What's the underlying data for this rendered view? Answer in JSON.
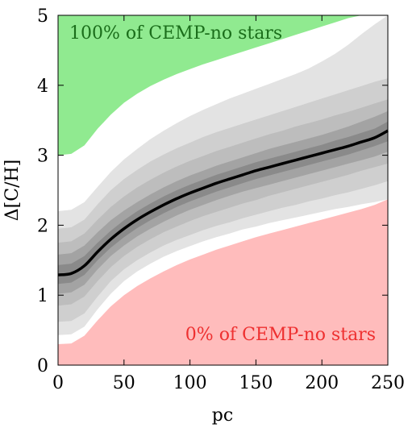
{
  "chart_data": {
    "type": "area",
    "xlabel": "pc",
    "ylabel": "Δ[C/H]",
    "xlim": [
      0,
      250
    ],
    "ylim": [
      0,
      5
    ],
    "xticks": [
      0,
      50,
      100,
      150,
      200,
      250
    ],
    "yticks": [
      0,
      1,
      2,
      3,
      4,
      5
    ],
    "x": [
      0,
      10,
      20,
      30,
      40,
      50,
      60,
      70,
      80,
      90,
      100,
      110,
      120,
      130,
      140,
      150,
      160,
      170,
      180,
      190,
      200,
      210,
      220,
      230,
      240,
      250
    ],
    "median": [
      1.29,
      1.31,
      1.42,
      1.62,
      1.8,
      1.95,
      2.08,
      2.19,
      2.29,
      2.38,
      2.46,
      2.53,
      2.6,
      2.66,
      2.72,
      2.78,
      2.83,
      2.88,
      2.93,
      2.98,
      3.03,
      3.08,
      3.13,
      3.19,
      3.25,
      3.35
    ],
    "bands": [
      {
        "name": "band-outer",
        "color": "#e3e3e3",
        "lower": [
          0.43,
          0.44,
          0.55,
          0.8,
          1.02,
          1.2,
          1.34,
          1.45,
          1.55,
          1.63,
          1.7,
          1.77,
          1.83,
          1.88,
          1.94,
          1.98,
          2.03,
          2.07,
          2.11,
          2.15,
          2.19,
          2.23,
          2.26,
          2.3,
          2.33,
          2.37
        ],
        "upper": [
          2.2,
          2.22,
          2.33,
          2.55,
          2.76,
          2.94,
          3.09,
          3.23,
          3.35,
          3.46,
          3.56,
          3.65,
          3.73,
          3.81,
          3.88,
          3.95,
          4.02,
          4.09,
          4.16,
          4.24,
          4.34,
          4.45,
          4.58,
          4.73,
          4.87,
          5.0
        ]
      },
      {
        "name": "band-2",
        "color": "#cfcfcf",
        "lower": [
          0.62,
          0.63,
          0.74,
          0.98,
          1.2,
          1.37,
          1.5,
          1.61,
          1.71,
          1.79,
          1.86,
          1.93,
          1.99,
          2.04,
          2.1,
          2.15,
          2.2,
          2.25,
          2.29,
          2.34,
          2.38,
          2.43,
          2.47,
          2.52,
          2.57,
          2.63
        ],
        "upper": [
          1.95,
          1.97,
          2.08,
          2.3,
          2.5,
          2.66,
          2.79,
          2.91,
          3.01,
          3.1,
          3.18,
          3.26,
          3.33,
          3.39,
          3.45,
          3.51,
          3.57,
          3.63,
          3.69,
          3.75,
          3.81,
          3.87,
          3.93,
          3.99,
          4.05,
          4.1
        ]
      },
      {
        "name": "band-3",
        "color": "#bdbdbd",
        "lower": [
          0.85,
          0.87,
          0.98,
          1.2,
          1.4,
          1.56,
          1.69,
          1.8,
          1.9,
          1.98,
          2.06,
          2.13,
          2.19,
          2.25,
          2.31,
          2.36,
          2.42,
          2.47,
          2.52,
          2.57,
          2.62,
          2.67,
          2.72,
          2.78,
          2.83,
          2.88
        ],
        "upper": [
          1.75,
          1.77,
          1.88,
          2.08,
          2.26,
          2.41,
          2.54,
          2.65,
          2.75,
          2.84,
          2.92,
          2.99,
          3.06,
          3.12,
          3.18,
          3.24,
          3.3,
          3.35,
          3.41,
          3.46,
          3.51,
          3.57,
          3.62,
          3.68,
          3.74,
          3.8
        ]
      },
      {
        "name": "band-4",
        "color": "#a3a3a3",
        "lower": [
          1.02,
          1.04,
          1.15,
          1.37,
          1.56,
          1.71,
          1.84,
          1.95,
          2.05,
          2.14,
          2.22,
          2.29,
          2.36,
          2.42,
          2.48,
          2.53,
          2.58,
          2.63,
          2.68,
          2.73,
          2.78,
          2.83,
          2.88,
          2.93,
          2.98,
          3.05
        ],
        "upper": [
          1.58,
          1.6,
          1.71,
          1.9,
          2.07,
          2.21,
          2.33,
          2.44,
          2.54,
          2.63,
          2.71,
          2.78,
          2.85,
          2.91,
          2.97,
          3.03,
          3.09,
          3.14,
          3.19,
          3.24,
          3.29,
          3.35,
          3.41,
          3.48,
          3.55,
          3.63
        ]
      },
      {
        "name": "band-inner",
        "color": "#8a8a8a",
        "lower": [
          1.16,
          1.18,
          1.29,
          1.5,
          1.68,
          1.83,
          1.96,
          2.07,
          2.17,
          2.26,
          2.34,
          2.41,
          2.48,
          2.54,
          2.6,
          2.66,
          2.71,
          2.76,
          2.81,
          2.86,
          2.91,
          2.96,
          3.01,
          3.07,
          3.13,
          3.2
        ],
        "upper": [
          1.43,
          1.45,
          1.56,
          1.75,
          1.92,
          2.07,
          2.2,
          2.31,
          2.41,
          2.5,
          2.58,
          2.65,
          2.72,
          2.78,
          2.84,
          2.9,
          2.95,
          3.0,
          3.05,
          3.1,
          3.15,
          3.21,
          3.26,
          3.32,
          3.38,
          3.48
        ]
      }
    ],
    "region_top": {
      "color": "#90ea90",
      "label": "100% of CEMP-no stars",
      "label_color": "#1b6e1b",
      "lower": [
        3.0,
        3.02,
        3.14,
        3.38,
        3.58,
        3.75,
        3.88,
        3.99,
        4.08,
        4.16,
        4.23,
        4.3,
        4.36,
        4.42,
        4.48,
        4.54,
        4.6,
        4.66,
        4.72,
        4.78,
        4.84,
        4.9,
        4.96,
        5.0,
        5.0,
        5.0
      ]
    },
    "region_bottom": {
      "color": "#ffbcbc",
      "label": "0% of CEMP-no stars",
      "label_color": "#ee3030",
      "upper": [
        0.3,
        0.31,
        0.42,
        0.64,
        0.84,
        1.0,
        1.13,
        1.24,
        1.34,
        1.43,
        1.51,
        1.58,
        1.65,
        1.71,
        1.77,
        1.83,
        1.88,
        1.93,
        1.98,
        2.03,
        2.08,
        2.13,
        2.18,
        2.23,
        2.29,
        2.37
      ]
    },
    "colors": {
      "median_line": "#000000"
    }
  }
}
